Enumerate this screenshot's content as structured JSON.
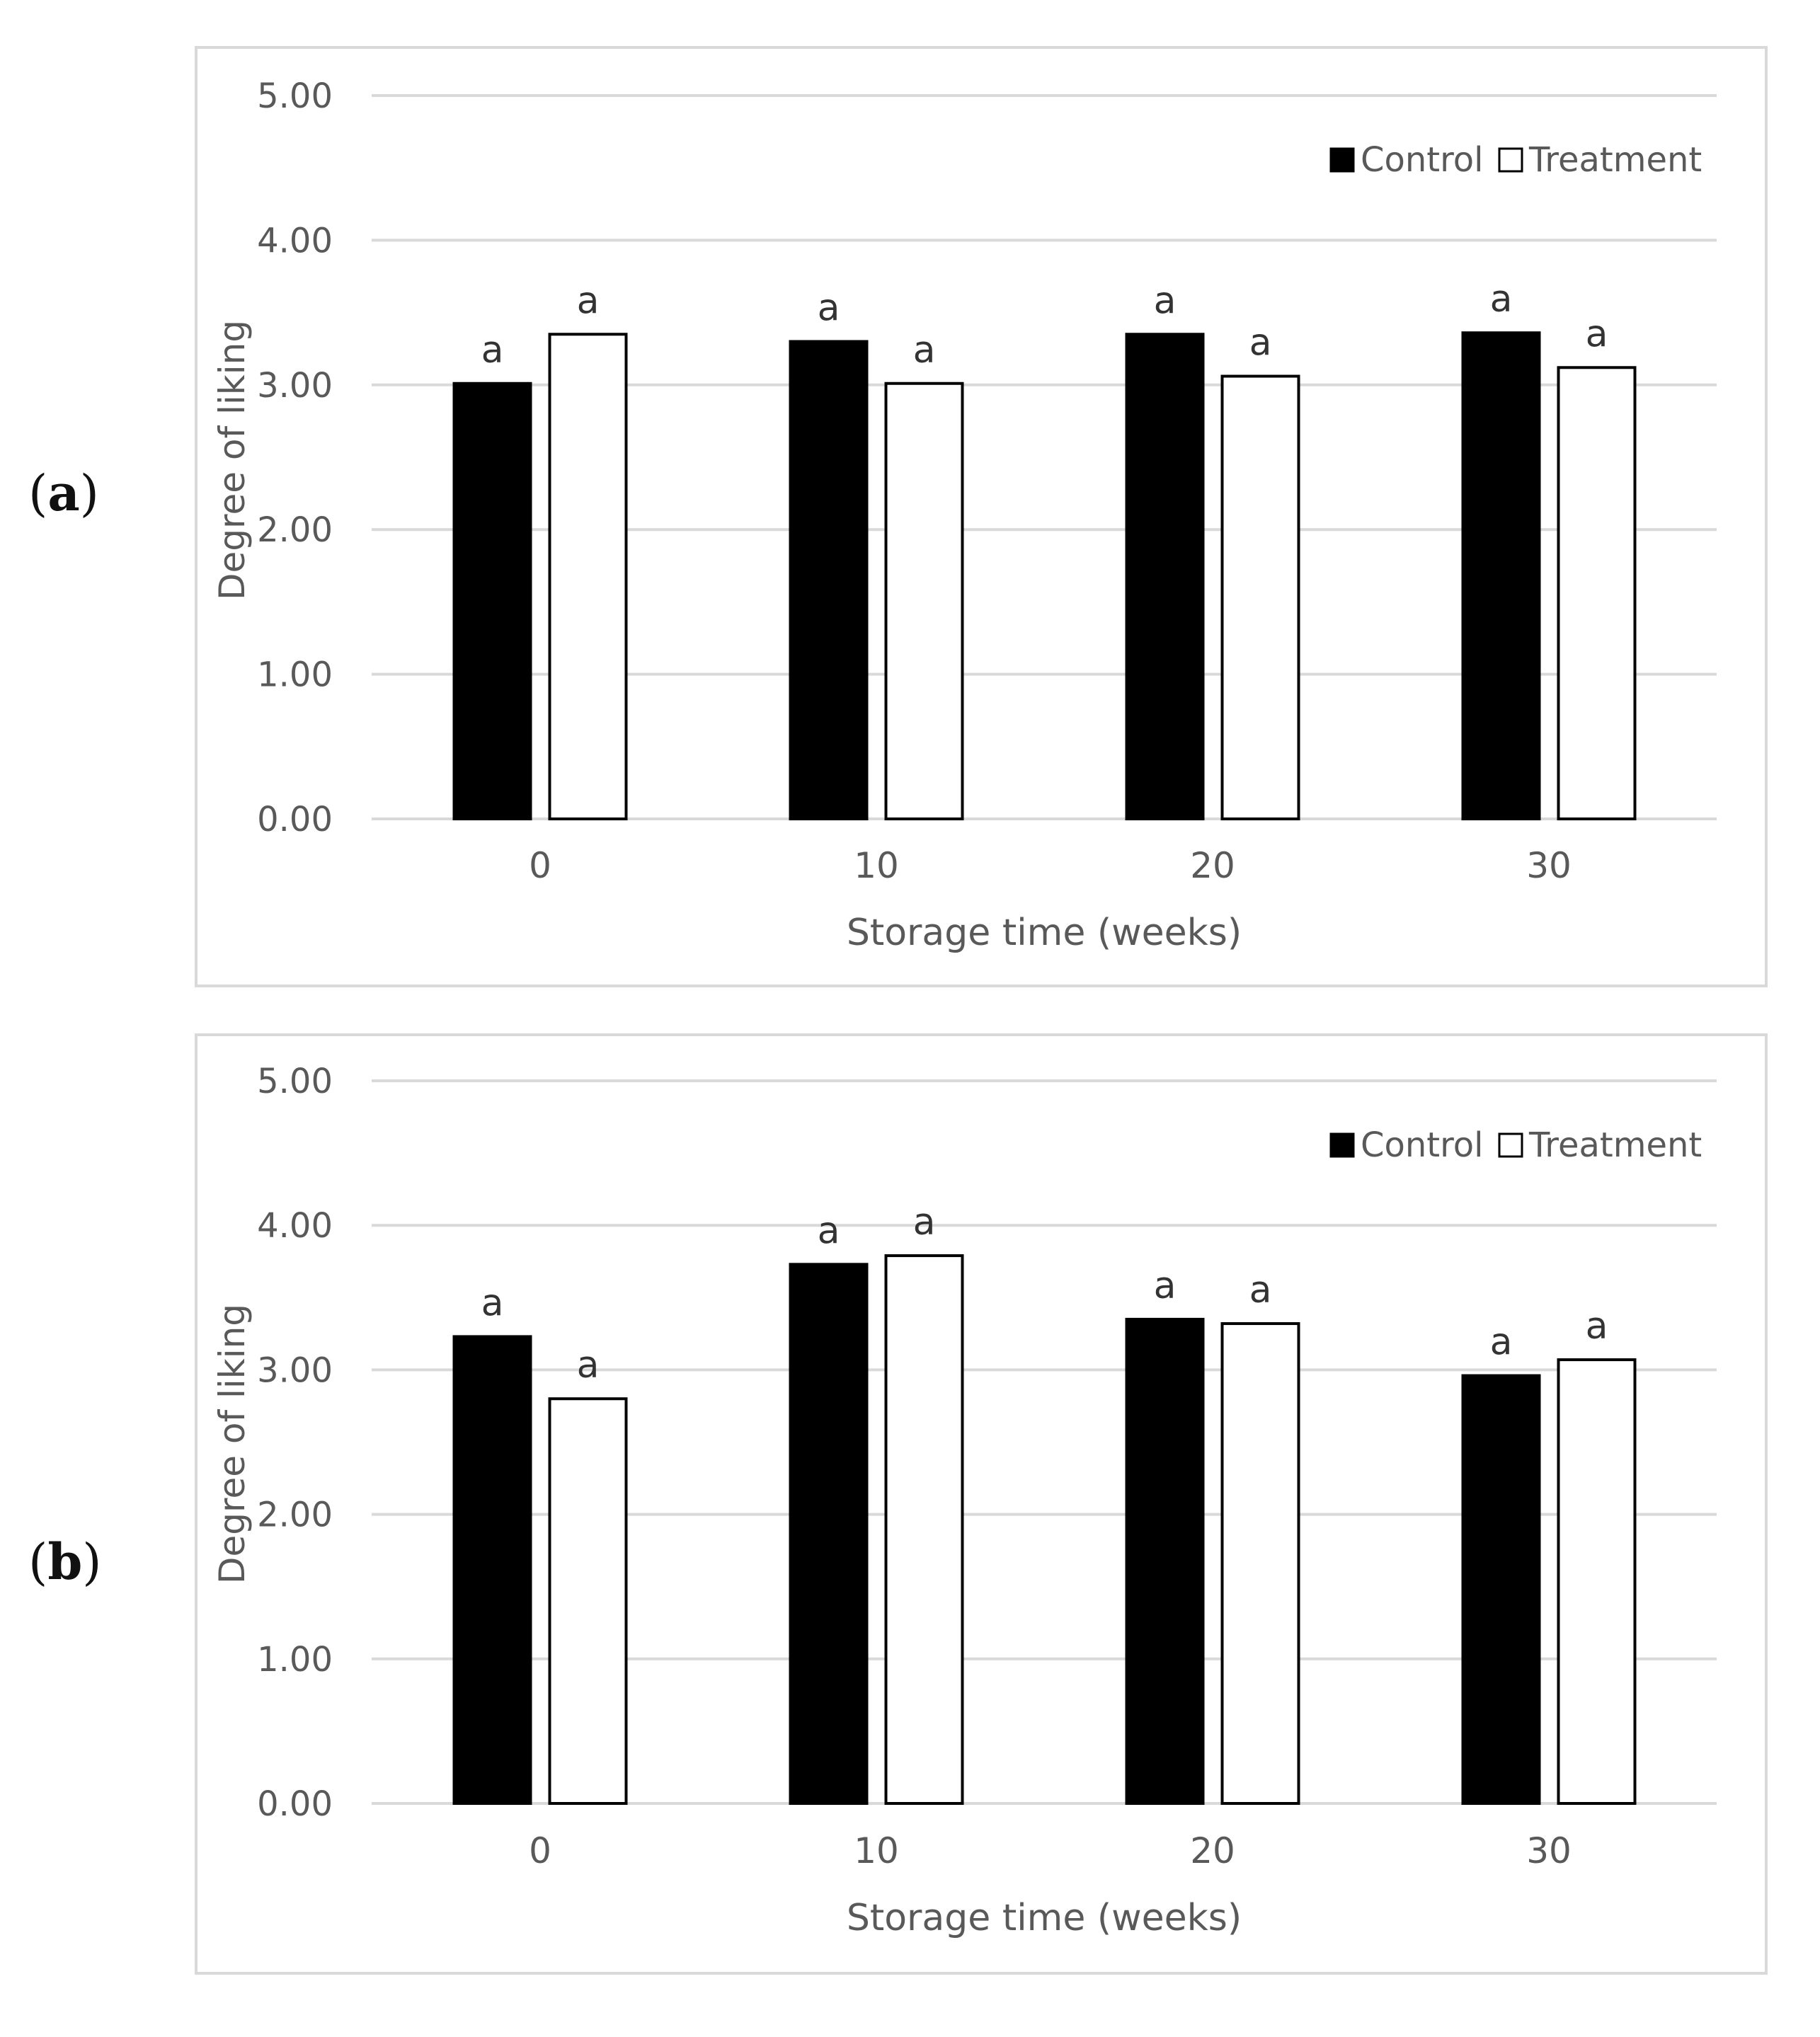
{
  "panels": {
    "a": {
      "label_pre": "(",
      "letter": "a",
      "label_post": ")"
    },
    "b": {
      "label_pre": "(",
      "letter": "b",
      "label_post": ")"
    }
  },
  "colors": {
    "control": "#000000",
    "treatment": "#ffffff",
    "grid": "#d9d9d9",
    "text": "#595959"
  },
  "chart_data": [
    {
      "type": "bar",
      "panel": "a",
      "categories": [
        "0",
        "10",
        "20",
        "30"
      ],
      "series": [
        {
          "name": "Control",
          "values": [
            3.01,
            3.3,
            3.35,
            3.36
          ]
        },
        {
          "name": "Treatment",
          "values": [
            3.35,
            3.01,
            3.06,
            3.12
          ]
        }
      ],
      "annotations": {
        "Control": [
          "a",
          "a",
          "a",
          "a"
        ],
        "Treatment": [
          "a",
          "a",
          "a",
          "a"
        ]
      },
      "xlabel": "Storage time (weeks)",
      "ylabel": "Degree of liking",
      "yticks": [
        "0.00",
        "1.00",
        "2.00",
        "3.00",
        "4.00",
        "5.00"
      ],
      "ylim": [
        0,
        5
      ],
      "grid": true,
      "legend": "top-right"
    },
    {
      "type": "bar",
      "panel": "b",
      "categories": [
        "0",
        "10",
        "20",
        "30"
      ],
      "series": [
        {
          "name": "Control",
          "values": [
            3.23,
            3.73,
            3.35,
            2.96
          ]
        },
        {
          "name": "Treatment",
          "values": [
            2.8,
            3.79,
            3.32,
            3.07
          ]
        }
      ],
      "annotations": {
        "Control": [
          "a",
          "a",
          "a",
          "a"
        ],
        "Treatment": [
          "a",
          "a",
          "a",
          "a"
        ]
      },
      "xlabel": "Storage time (weeks)",
      "ylabel": "Degree of liking",
      "yticks": [
        "0.00",
        "1.00",
        "2.00",
        "3.00",
        "4.00",
        "5.00"
      ],
      "ylim": [
        0,
        5
      ],
      "grid": true,
      "legend": "top-right"
    }
  ]
}
